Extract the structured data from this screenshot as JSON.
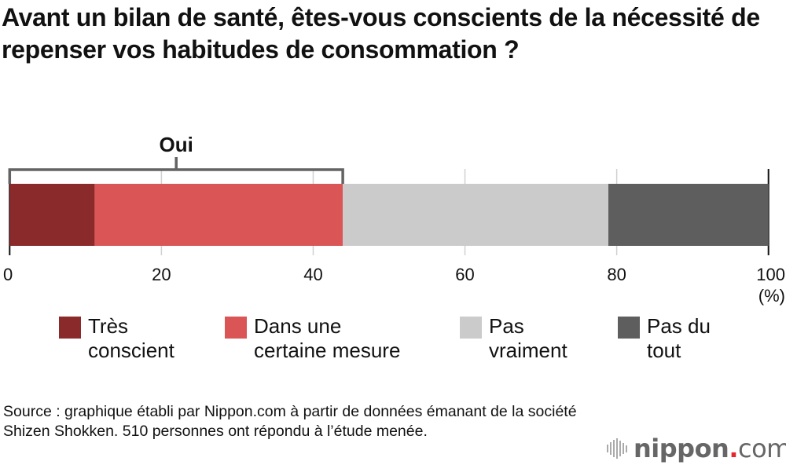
{
  "chart_data": {
    "type": "bar",
    "orientation": "horizontal-stacked",
    "title": "Avant un bilan de santé, êtes-vous conscients de la nécessité de repenser vos habitudes de consommation ?",
    "categories": [
      "Très conscient",
      "Dans une certaine mesure",
      "Pas vraiment",
      "Pas du tout"
    ],
    "series": [
      {
        "name": "Très conscient",
        "value": 11.2,
        "color": "#8b2a2b"
      },
      {
        "name": "Dans une certaine mesure",
        "value": 32.7,
        "color": "#da5556"
      },
      {
        "name": "Pas vraiment",
        "value": 35.0,
        "color": "#cbcbcb"
      },
      {
        "name": "Pas du tout",
        "value": 21.1,
        "color": "#5e5e5e"
      }
    ],
    "xlim": [
      0,
      100
    ],
    "xticks": [
      "0",
      "20",
      "40",
      "60",
      "80",
      "100"
    ],
    "xunit": "(%)",
    "grid": true,
    "annotation": {
      "label": "Oui",
      "from": 0,
      "to": 43.9
    },
    "legend_position": "bottom"
  },
  "legend": [
    {
      "line1": "Très",
      "line2": "conscient"
    },
    {
      "line1": "Dans une",
      "line2": "certaine mesure"
    },
    {
      "line1": "Pas",
      "line2": "vraiment"
    },
    {
      "line1": "Pas du",
      "line2": "tout"
    }
  ],
  "source": "Source : graphique établi par Nippon.com à partir de données émanant de la société Shizen Shokken. 510 personnes ont répondu à l’étude menée.",
  "logo": {
    "name": "nippon",
    "dot": ".",
    "tld": "com"
  }
}
